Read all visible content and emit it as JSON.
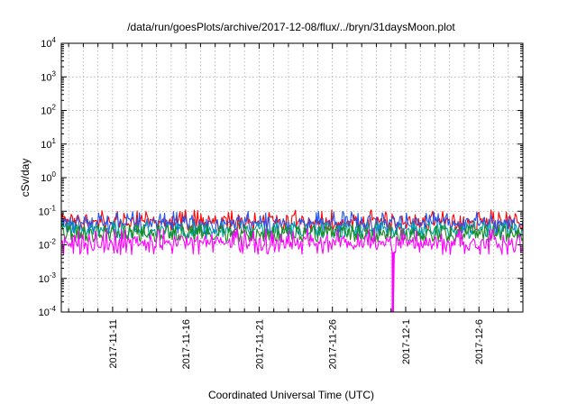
{
  "chart_data": {
    "type": "line",
    "title": "/data/run/goesPlots/archive/2017-12-08/flux/../bryn/31daysMoon.plot",
    "xlabel": "Coordinated Universal Time (UTC)",
    "ylabel": "cSv/day",
    "yscale": "log",
    "ylim": [
      0.0001,
      10000
    ],
    "xlim": [
      "2017-11-07T12:00",
      "2017-12-09T00:00"
    ],
    "grid": true,
    "x_ticks": [
      "2017-11-11",
      "2017-11-16",
      "2017-11-21",
      "2017-11-26",
      "2017-12-1",
      "2017-12-6"
    ],
    "y_ticks": [
      {
        "base": "10",
        "exp": "-4",
        "value": 0.0001
      },
      {
        "base": "10",
        "exp": "-3",
        "value": 0.001
      },
      {
        "base": "10",
        "exp": "-2",
        "value": 0.01
      },
      {
        "base": "10",
        "exp": "-1",
        "value": 0.1
      },
      {
        "base": "10",
        "exp": "0",
        "value": 1
      },
      {
        "base": "10",
        "exp": "1",
        "value": 10
      },
      {
        "base": "10",
        "exp": "2",
        "value": 100
      },
      {
        "base": "10",
        "exp": "3",
        "value": 1000
      },
      {
        "base": "10",
        "exp": "4",
        "value": 10000
      }
    ],
    "series": [
      {
        "color": "#ff0000",
        "typical": 0.05,
        "low": 0.025,
        "high": 0.11
      },
      {
        "color": "#2255ee",
        "typical": 0.045,
        "low": 0.02,
        "high": 0.1
      },
      {
        "color": "#00a0a0",
        "typical": 0.028,
        "low": 0.015,
        "high": 0.05
      },
      {
        "color": "#1a8a1a",
        "typical": 0.022,
        "low": 0.012,
        "high": 0.04
      },
      {
        "color": "#ff00ff",
        "typical": 0.012,
        "low": 0.005,
        "high": 0.03
      }
    ],
    "dropout": {
      "x": "2017-11-30T03:00",
      "min": 0.0001
    }
  }
}
